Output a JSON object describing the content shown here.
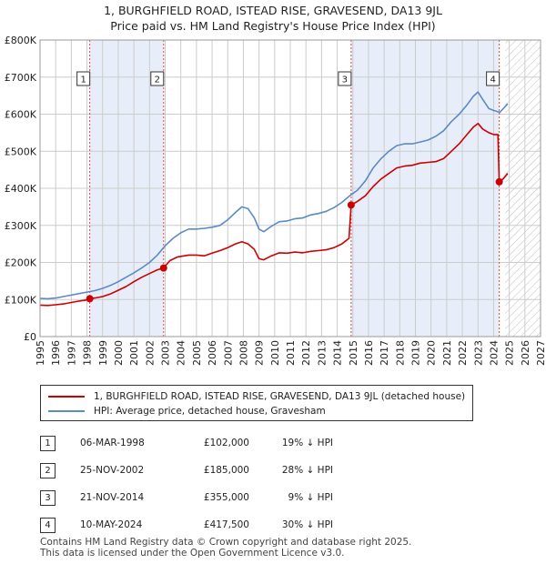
{
  "title_line1": "1, BURGHFIELD ROAD, ISTEAD RISE, GRAVESEND, DA13 9JL",
  "title_line2": "Price paid vs. HM Land Registry's House Price Index (HPI)",
  "chart_data": {
    "type": "line",
    "xlim": [
      1995,
      2027
    ],
    "ylim": [
      0,
      800000
    ],
    "x_ticks": [
      1995,
      1996,
      1997,
      1998,
      1999,
      2000,
      2001,
      2002,
      2003,
      2004,
      2005,
      2006,
      2007,
      2008,
      2009,
      2010,
      2011,
      2012,
      2013,
      2014,
      2015,
      2016,
      2017,
      2018,
      2019,
      2020,
      2021,
      2022,
      2023,
      2024,
      2025,
      2026,
      2027
    ],
    "y_ticks": [
      {
        "value": 0,
        "label": "£0"
      },
      {
        "value": 100000,
        "label": "£100K"
      },
      {
        "value": 200000,
        "label": "£200K"
      },
      {
        "value": 300000,
        "label": "£300K"
      },
      {
        "value": 400000,
        "label": "£400K"
      },
      {
        "value": 500000,
        "label": "£500K"
      },
      {
        "value": 600000,
        "label": "£600K"
      },
      {
        "value": 700000,
        "label": "£700K"
      },
      {
        "value": 800000,
        "label": "£800K"
      }
    ],
    "shaded_periods": [
      [
        1998.18,
        2002.9
      ],
      [
        2014.89,
        2024.36
      ]
    ],
    "future_start": 2024.75,
    "series": [
      {
        "name": "1, BURGHFIELD ROAD, ISTEAD RISE, GRAVESEND, DA13 9JL (detached house)",
        "color": "#cc0000",
        "points": [
          [
            1995.0,
            85000
          ],
          [
            1995.5,
            84000
          ],
          [
            1996.0,
            86000
          ],
          [
            1996.5,
            88000
          ],
          [
            1997.0,
            92000
          ],
          [
            1997.5,
            96000
          ],
          [
            1998.0,
            99000
          ],
          [
            1998.18,
            102000
          ],
          [
            1998.5,
            104000
          ],
          [
            1999.0,
            108000
          ],
          [
            1999.5,
            115000
          ],
          [
            2000.0,
            125000
          ],
          [
            2000.5,
            135000
          ],
          [
            2001.0,
            148000
          ],
          [
            2001.5,
            160000
          ],
          [
            2002.0,
            170000
          ],
          [
            2002.5,
            180000
          ],
          [
            2002.9,
            185000
          ],
          [
            2003.3,
            205000
          ],
          [
            2003.8,
            215000
          ],
          [
            2004.5,
            220000
          ],
          [
            2005.0,
            220000
          ],
          [
            2005.5,
            218000
          ],
          [
            2006.0,
            225000
          ],
          [
            2006.5,
            232000
          ],
          [
            2007.0,
            240000
          ],
          [
            2007.5,
            250000
          ],
          [
            2007.9,
            256000
          ],
          [
            2008.3,
            250000
          ],
          [
            2008.7,
            235000
          ],
          [
            2009.0,
            210000
          ],
          [
            2009.3,
            207000
          ],
          [
            2009.8,
            218000
          ],
          [
            2010.3,
            226000
          ],
          [
            2010.8,
            225000
          ],
          [
            2011.3,
            228000
          ],
          [
            2011.8,
            226000
          ],
          [
            2012.3,
            230000
          ],
          [
            2012.8,
            232000
          ],
          [
            2013.3,
            234000
          ],
          [
            2013.8,
            240000
          ],
          [
            2014.3,
            250000
          ],
          [
            2014.75,
            265000
          ],
          [
            2014.89,
            355000
          ],
          [
            2015.3,
            365000
          ],
          [
            2015.8,
            380000
          ],
          [
            2016.3,
            405000
          ],
          [
            2016.8,
            425000
          ],
          [
            2017.3,
            440000
          ],
          [
            2017.8,
            455000
          ],
          [
            2018.3,
            460000
          ],
          [
            2018.8,
            462000
          ],
          [
            2019.3,
            468000
          ],
          [
            2019.8,
            470000
          ],
          [
            2020.3,
            472000
          ],
          [
            2020.8,
            480000
          ],
          [
            2021.3,
            500000
          ],
          [
            2021.8,
            520000
          ],
          [
            2022.3,
            545000
          ],
          [
            2022.7,
            565000
          ],
          [
            2023.0,
            575000
          ],
          [
            2023.3,
            560000
          ],
          [
            2023.7,
            550000
          ],
          [
            2024.0,
            545000
          ],
          [
            2024.28,
            545000
          ],
          [
            2024.36,
            417500
          ],
          [
            2024.6,
            425000
          ],
          [
            2024.9,
            440000
          ]
        ]
      },
      {
        "name": "HPI: Average price, detached house, Gravesham",
        "color": "#5b8ac5",
        "points": [
          [
            1995.0,
            103000
          ],
          [
            1995.5,
            102000
          ],
          [
            1996.0,
            104000
          ],
          [
            1996.5,
            108000
          ],
          [
            1997.0,
            112000
          ],
          [
            1997.5,
            116000
          ],
          [
            1998.0,
            120000
          ],
          [
            1998.5,
            124000
          ],
          [
            1999.0,
            130000
          ],
          [
            1999.5,
            138000
          ],
          [
            2000.0,
            148000
          ],
          [
            2000.5,
            160000
          ],
          [
            2001.0,
            172000
          ],
          [
            2001.5,
            185000
          ],
          [
            2002.0,
            200000
          ],
          [
            2002.5,
            220000
          ],
          [
            2003.0,
            245000
          ],
          [
            2003.5,
            265000
          ],
          [
            2004.0,
            280000
          ],
          [
            2004.5,
            290000
          ],
          [
            2005.0,
            290000
          ],
          [
            2005.5,
            292000
          ],
          [
            2006.0,
            295000
          ],
          [
            2006.5,
            300000
          ],
          [
            2007.0,
            315000
          ],
          [
            2007.5,
            335000
          ],
          [
            2007.9,
            350000
          ],
          [
            2008.3,
            345000
          ],
          [
            2008.7,
            320000
          ],
          [
            2009.0,
            290000
          ],
          [
            2009.3,
            283000
          ],
          [
            2009.8,
            298000
          ],
          [
            2010.3,
            310000
          ],
          [
            2010.8,
            312000
          ],
          [
            2011.3,
            318000
          ],
          [
            2011.8,
            320000
          ],
          [
            2012.3,
            328000
          ],
          [
            2012.8,
            332000
          ],
          [
            2013.3,
            338000
          ],
          [
            2013.8,
            348000
          ],
          [
            2014.3,
            362000
          ],
          [
            2014.8,
            380000
          ],
          [
            2015.3,
            395000
          ],
          [
            2015.8,
            420000
          ],
          [
            2016.3,
            455000
          ],
          [
            2016.8,
            480000
          ],
          [
            2017.3,
            500000
          ],
          [
            2017.8,
            515000
          ],
          [
            2018.3,
            520000
          ],
          [
            2018.8,
            520000
          ],
          [
            2019.3,
            525000
          ],
          [
            2019.8,
            530000
          ],
          [
            2020.3,
            540000
          ],
          [
            2020.8,
            555000
          ],
          [
            2021.3,
            580000
          ],
          [
            2021.8,
            600000
          ],
          [
            2022.3,
            625000
          ],
          [
            2022.7,
            648000
          ],
          [
            2023.0,
            660000
          ],
          [
            2023.3,
            640000
          ],
          [
            2023.7,
            615000
          ],
          [
            2024.0,
            610000
          ],
          [
            2024.4,
            605000
          ],
          [
            2024.9,
            628000
          ]
        ]
      }
    ],
    "markers": [
      {
        "label": "1",
        "x": 1998.18,
        "y": 102000
      },
      {
        "label": "2",
        "x": 2002.9,
        "y": 185000
      },
      {
        "label": "3",
        "x": 2014.89,
        "y": 355000
      },
      {
        "label": "4",
        "x": 2024.36,
        "y": 417500
      }
    ]
  },
  "legend": {
    "property": "1, BURGHFIELD ROAD, ISTEAD RISE, GRAVESEND, DA13 9JL (detached house)",
    "hpi": "HPI: Average price, detached house, Gravesham"
  },
  "sales": [
    {
      "num": "1",
      "date": "06-MAR-1998",
      "price": "£102,000",
      "hpi": "19% ↓ HPI"
    },
    {
      "num": "2",
      "date": "25-NOV-2002",
      "price": "£185,000",
      "hpi": "28% ↓ HPI"
    },
    {
      "num": "3",
      "date": "21-NOV-2014",
      "price": "£355,000",
      "hpi": "9% ↓ HPI"
    },
    {
      "num": "4",
      "date": "10-MAY-2024",
      "price": "£417,500",
      "hpi": "30% ↓ HPI"
    }
  ],
  "footer_line1": "Contains HM Land Registry data © Crown copyright and database right 2025.",
  "footer_line2": "This data is licensed under the Open Government Licence v3.0.",
  "colors": {
    "property": "#cc0000",
    "hpi": "#5b8ac5",
    "shade": "#e8eef9",
    "grid": "#cccccc",
    "marker_line": "#dd4444"
  }
}
